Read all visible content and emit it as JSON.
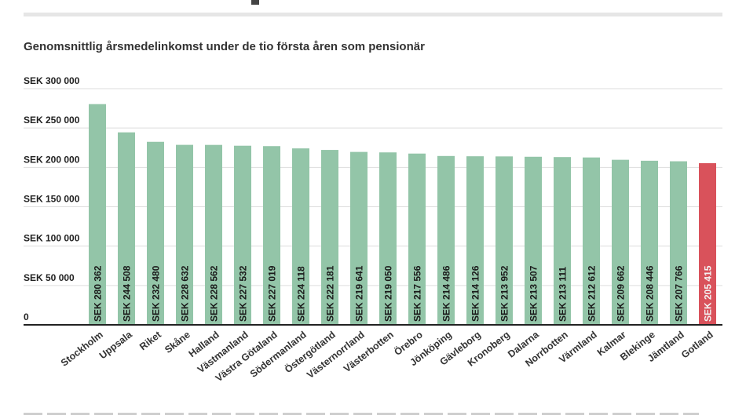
{
  "chart_data": {
    "type": "bar",
    "title": "Genomsnittlig årsmedelinkomst under de tio första åren som pensionär",
    "xlabel": "",
    "ylabel": "",
    "ylim": [
      0,
      300000
    ],
    "y_ticks": [
      0,
      50000,
      100000,
      150000,
      200000,
      250000,
      300000
    ],
    "y_tick_labels": [
      "0",
      "SEK 50 000",
      "SEK 100 000",
      "SEK 150 000",
      "SEK 200 000",
      "SEK 250 000",
      "SEK 300 000"
    ],
    "grid": true,
    "categories": [
      "Stockholm",
      "Uppsala",
      "Riket",
      "Skåne",
      "Halland",
      "Västmanland",
      "Västra Götaland",
      "Södermanland",
      "Östergötland",
      "Västernorrland",
      "Västerbotten",
      "Örebro",
      "Jönköping",
      "Gävleborg",
      "Kronoberg",
      "Dalarna",
      "Norrbotten",
      "Värmland",
      "Kalmar",
      "Blekinge",
      "Jämtland",
      "Gotland"
    ],
    "values": [
      280362,
      244508,
      232480,
      228632,
      228562,
      227532,
      227019,
      224118,
      222181,
      219641,
      219050,
      217556,
      214486,
      214126,
      213952,
      213507,
      213111,
      212612,
      209662,
      208446,
      207766,
      205415
    ],
    "data_labels": [
      "SEK 280 362",
      "SEK 244 508",
      "SEK 232 480",
      "SEK 228 632",
      "SEK 228 562",
      "SEK 227 532",
      "SEK 227 019",
      "SEK 224 118",
      "SEK 222 181",
      "SEK 219 641",
      "SEK 219 050",
      "SEK 217 556",
      "SEK 214 486",
      "SEK 214 126",
      "SEK 213 952",
      "SEK 213 507",
      "SEK 213 111",
      "SEK 212 612",
      "SEK 209 662",
      "SEK 208 446",
      "SEK 207 766",
      "SEK 205 415"
    ],
    "colors": {
      "default_bar": "#93c5a8",
      "highlight_bar": "#d9525b",
      "highlight_category": "Gotland",
      "label_dark": "#1a1a1a",
      "label_light": "#f3f3f3",
      "grid": "#dddddd",
      "axis": "#222222"
    }
  }
}
